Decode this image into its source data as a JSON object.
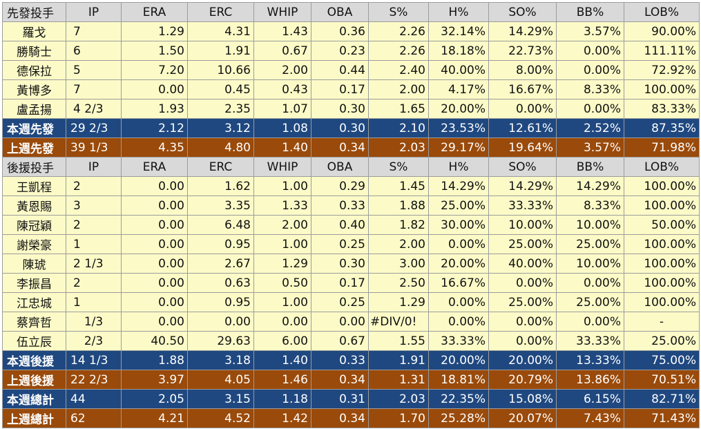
{
  "columns": [
    "IP",
    "ERA",
    "ERC",
    "WHIP",
    "OBA",
    "S%",
    "H%",
    "SO%",
    "BB%",
    "LOB%"
  ],
  "starters": {
    "header": "先發投手",
    "rows": [
      {
        "name": "羅戈",
        "ip": "7",
        "era": "1.29",
        "erc": "4.31",
        "whip": "1.43",
        "oba": "0.36",
        "s": "2.26",
        "h": "32.14%",
        "so": "14.29%",
        "bb": "3.57%",
        "lob": "90.00%"
      },
      {
        "name": "勝騎士",
        "ip": "6",
        "era": "1.50",
        "erc": "1.91",
        "whip": "0.67",
        "oba": "0.23",
        "s": "2.26",
        "h": "18.18%",
        "so": "22.73%",
        "bb": "0.00%",
        "lob": "111.11%"
      },
      {
        "name": "德保拉",
        "ip": "5",
        "era": "7.20",
        "erc": "10.66",
        "whip": "2.00",
        "oba": "0.44",
        "s": "2.40",
        "h": "40.00%",
        "so": "8.00%",
        "bb": "0.00%",
        "lob": "72.92%"
      },
      {
        "name": "黃博多",
        "ip": "7",
        "era": "0.00",
        "erc": "0.45",
        "whip": "0.43",
        "oba": "0.17",
        "s": "2.00",
        "h": "4.17%",
        "so": "16.67%",
        "bb": "8.33%",
        "lob": "100.00%"
      },
      {
        "name": "盧孟揚",
        "ip": "4 2/3",
        "era": "1.93",
        "erc": "2.35",
        "whip": "1.07",
        "oba": "0.30",
        "s": "1.65",
        "h": "20.00%",
        "so": "0.00%",
        "bb": "0.00%",
        "lob": "83.33%"
      }
    ],
    "this_week": {
      "label": "本週先發",
      "ip": "29 2/3",
      "era": "2.12",
      "erc": "3.12",
      "whip": "1.08",
      "oba": "0.30",
      "s": "2.10",
      "h": "23.53%",
      "so": "12.61%",
      "bb": "2.52%",
      "lob": "87.35%"
    },
    "last_week": {
      "label": "上週先發",
      "ip": "39 1/3",
      "era": "4.35",
      "erc": "4.80",
      "whip": "1.40",
      "oba": "0.34",
      "s": "2.03",
      "h": "29.17%",
      "so": "19.64%",
      "bb": "3.57%",
      "lob": "71.98%"
    }
  },
  "relievers": {
    "header": "後援投手",
    "rows": [
      {
        "name": "王凱程",
        "ip": "2",
        "era": "0.00",
        "erc": "1.62",
        "whip": "1.00",
        "oba": "0.29",
        "s": "1.45",
        "h": "14.29%",
        "so": "14.29%",
        "bb": "14.29%",
        "lob": "100.00%"
      },
      {
        "name": "黃恩賜",
        "ip": "3",
        "era": "0.00",
        "erc": "3.35",
        "whip": "1.33",
        "oba": "0.33",
        "s": "1.88",
        "h": "25.00%",
        "so": "33.33%",
        "bb": "8.33%",
        "lob": "100.00%"
      },
      {
        "name": "陳冠穎",
        "ip": "2",
        "era": "0.00",
        "erc": "6.48",
        "whip": "2.00",
        "oba": "0.40",
        "s": "1.82",
        "h": "30.00%",
        "so": "10.00%",
        "bb": "10.00%",
        "lob": "50.00%"
      },
      {
        "name": "謝榮豪",
        "ip": "1",
        "era": "0.00",
        "erc": "0.95",
        "whip": "1.00",
        "oba": "0.25",
        "s": "2.00",
        "h": "0.00%",
        "so": "25.00%",
        "bb": "25.00%",
        "lob": "100.00%"
      },
      {
        "name": "陳琥",
        "ip": "2 1/3",
        "era": "0.00",
        "erc": "2.67",
        "whip": "1.29",
        "oba": "0.30",
        "s": "3.00",
        "h": "20.00%",
        "so": "40.00%",
        "bb": "10.00%",
        "lob": "100.00%"
      },
      {
        "name": "李振昌",
        "ip": "2",
        "era": "0.00",
        "erc": "0.63",
        "whip": "0.50",
        "oba": "0.17",
        "s": "2.50",
        "h": "16.67%",
        "so": "0.00%",
        "bb": "0.00%",
        "lob": "100.00%"
      },
      {
        "name": "江忠城",
        "ip": "1",
        "era": "0.00",
        "erc": "0.95",
        "whip": "1.00",
        "oba": "0.25",
        "s": "1.29",
        "h": "0.00%",
        "so": "25.00%",
        "bb": "25.00%",
        "lob": "100.00%"
      },
      {
        "name": "蔡齊哲",
        "ip": "1/3",
        "era": "0.00",
        "erc": "0.00",
        "whip": "0.00",
        "oba": "0.00",
        "s": "#DIV/0!",
        "h": "0.00%",
        "so": "0.00%",
        "bb": "0.00%",
        "lob": "-"
      },
      {
        "name": "伍立辰",
        "ip": "2/3",
        "era": "40.50",
        "erc": "29.63",
        "whip": "6.00",
        "oba": "0.67",
        "s": "1.55",
        "h": "33.33%",
        "so": "0.00%",
        "bb": "33.33%",
        "lob": "25.00%"
      }
    ],
    "this_week": {
      "label": "本週後援",
      "ip": "14 1/3",
      "era": "1.88",
      "erc": "3.18",
      "whip": "1.40",
      "oba": "0.33",
      "s": "1.91",
      "h": "20.00%",
      "so": "20.00%",
      "bb": "13.33%",
      "lob": "75.00%"
    },
    "last_week": {
      "label": "上週後援",
      "ip": "22 2/3",
      "era": "3.97",
      "erc": "4.05",
      "whip": "1.46",
      "oba": "0.34",
      "s": "1.31",
      "h": "18.81%",
      "so": "20.79%",
      "bb": "13.86%",
      "lob": "70.51%"
    }
  },
  "totals": {
    "this_week": {
      "label": "本週總計",
      "ip": "44",
      "era": "2.05",
      "erc": "3.15",
      "whip": "1.18",
      "oba": "0.31",
      "s": "2.03",
      "h": "22.35%",
      "so": "15.08%",
      "bb": "6.15%",
      "lob": "82.71%"
    },
    "last_week": {
      "label": "上週總計",
      "ip": "62",
      "era": "4.21",
      "erc": "4.52",
      "whip": "1.42",
      "oba": "0.34",
      "s": "1.70",
      "h": "25.28%",
      "so": "20.07%",
      "bb": "7.43%",
      "lob": "71.43%"
    }
  },
  "colors": {
    "header_bg": "#d9d9d9",
    "row_bg": "#fcfbc8",
    "this_week_bg": "#1f4880",
    "last_week_bg": "#9a4a0a",
    "border": "#9c9c9c"
  }
}
